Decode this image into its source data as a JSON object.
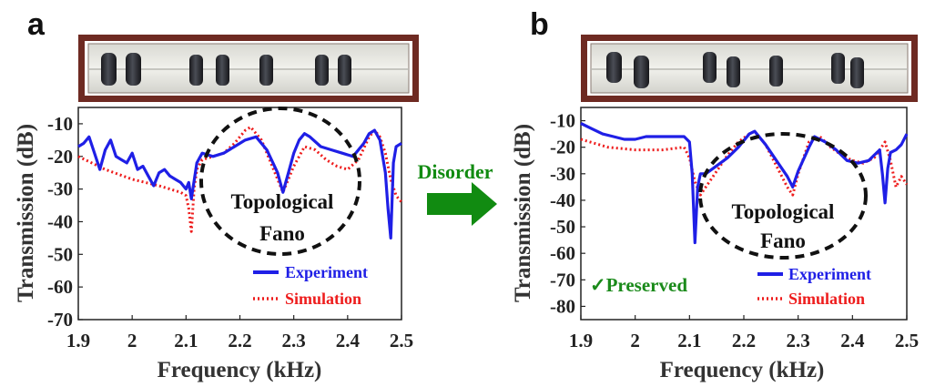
{
  "colors": {
    "experiment": "#1f1fe6",
    "simulation": "#ee1c1c",
    "arrow": "#118b11",
    "frame": "#6e2a22",
    "preserved": "#1a8a1a"
  },
  "arrow_label": "Disorder",
  "chart_data": [
    {
      "type": "line",
      "panel": "a",
      "xlabel": "Frequency (kHz)",
      "ylabel": "Transmission (dB)",
      "xlim": [
        1.9,
        2.5
      ],
      "ylim": [
        -70,
        -5
      ],
      "xticks": [
        "1.9",
        "2",
        "2.1",
        "2.2",
        "2.3",
        "2.4",
        "2.5"
      ],
      "yticks": [
        "-10",
        "-20",
        "-30",
        "-40",
        "-50",
        "-60",
        "-70"
      ],
      "annotation": [
        "Topological",
        "Fano"
      ],
      "legend": {
        "position": "bottom-right",
        "entries": [
          "Experiment",
          "Simulation"
        ]
      },
      "series": [
        {
          "name": "Experiment",
          "style": "solid",
          "x": [
            1.9,
            1.91,
            1.92,
            1.93,
            1.94,
            1.95,
            1.96,
            1.97,
            1.98,
            1.99,
            2.0,
            2.01,
            2.02,
            2.03,
            2.04,
            2.05,
            2.06,
            2.07,
            2.08,
            2.09,
            2.1,
            2.105,
            2.11,
            2.12,
            2.13,
            2.15,
            2.17,
            2.19,
            2.21,
            2.23,
            2.25,
            2.27,
            2.28,
            2.29,
            2.3,
            2.31,
            2.32,
            2.33,
            2.35,
            2.37,
            2.39,
            2.41,
            2.43,
            2.44,
            2.45,
            2.46,
            2.47,
            2.475,
            2.48,
            2.485,
            2.49,
            2.5
          ],
          "y": [
            -17,
            -16,
            -14,
            -19,
            -24,
            -18,
            -15,
            -20,
            -21,
            -22,
            -19,
            -24,
            -23,
            -26,
            -29,
            -25,
            -24,
            -26,
            -27,
            -28,
            -30,
            -28,
            -33,
            -22,
            -19,
            -20,
            -19,
            -17,
            -15,
            -14,
            -18,
            -25,
            -31,
            -25,
            -19,
            -15,
            -13,
            -14,
            -17,
            -18,
            -19,
            -20,
            -16,
            -13,
            -12,
            -15,
            -25,
            -36,
            -45,
            -22,
            -17,
            -16
          ]
        },
        {
          "name": "Simulation",
          "style": "dotted",
          "x": [
            1.9,
            1.95,
            2.0,
            2.05,
            2.09,
            2.1,
            2.105,
            2.11,
            2.115,
            2.12,
            2.13,
            2.15,
            2.17,
            2.19,
            2.21,
            2.22,
            2.24,
            2.26,
            2.28,
            2.3,
            2.32,
            2.34,
            2.36,
            2.38,
            2.4,
            2.42,
            2.44,
            2.45,
            2.46,
            2.47,
            2.48,
            2.49,
            2.5
          ],
          "y": [
            -20,
            -24,
            -27,
            -29,
            -31,
            -32,
            -36,
            -43,
            -30,
            -24,
            -21,
            -20,
            -19,
            -16,
            -12,
            -11,
            -15,
            -23,
            -31,
            -23,
            -17,
            -18,
            -21,
            -23,
            -24,
            -21,
            -14,
            -12,
            -14,
            -19,
            -27,
            -32,
            -34
          ]
        }
      ]
    },
    {
      "type": "line",
      "panel": "b",
      "xlabel": "Frequency (kHz)",
      "ylabel": "Transmission (dB)",
      "xlim": [
        1.9,
        2.5
      ],
      "ylim": [
        -85,
        -5
      ],
      "xticks": [
        "1.9",
        "2",
        "2.1",
        "2.2",
        "2.3",
        "2.4",
        "2.5"
      ],
      "yticks": [
        "-10",
        "-20",
        "-30",
        "-40",
        "-50",
        "-60",
        "-70",
        "-80"
      ],
      "annotation": [
        "Topological",
        "Fano"
      ],
      "status_text": "✓Preserved",
      "legend": {
        "position": "bottom-right",
        "entries": [
          "Experiment",
          "Simulation"
        ]
      },
      "series": [
        {
          "name": "Experiment",
          "style": "solid",
          "x": [
            1.9,
            1.92,
            1.94,
            1.96,
            1.98,
            2.0,
            2.02,
            2.04,
            2.06,
            2.08,
            2.09,
            2.1,
            2.105,
            2.11,
            2.115,
            2.12,
            2.13,
            2.15,
            2.17,
            2.19,
            2.21,
            2.22,
            2.24,
            2.26,
            2.28,
            2.29,
            2.3,
            2.32,
            2.33,
            2.35,
            2.37,
            2.39,
            2.41,
            2.43,
            2.44,
            2.45,
            2.455,
            2.46,
            2.465,
            2.47,
            2.48,
            2.49,
            2.5
          ],
          "y": [
            -11,
            -13,
            -15,
            -16,
            -17,
            -17,
            -16,
            -16,
            -16,
            -16,
            -16,
            -18,
            -30,
            -56,
            -35,
            -30,
            -30,
            -27,
            -24,
            -20,
            -15,
            -14,
            -19,
            -25,
            -31,
            -35,
            -29,
            -20,
            -16,
            -18,
            -21,
            -25,
            -26,
            -25,
            -23,
            -21,
            -30,
            -41,
            -28,
            -22,
            -21,
            -19,
            -15
          ]
        },
        {
          "name": "Simulation",
          "style": "dotted",
          "x": [
            1.9,
            1.95,
            2.0,
            2.05,
            2.09,
            2.1,
            2.11,
            2.12,
            2.13,
            2.15,
            2.17,
            2.19,
            2.21,
            2.22,
            2.24,
            2.26,
            2.28,
            2.29,
            2.3,
            2.32,
            2.34,
            2.36,
            2.38,
            2.4,
            2.42,
            2.44,
            2.45,
            2.46,
            2.47,
            2.48,
            2.49,
            2.5
          ],
          "y": [
            -17,
            -20,
            -21,
            -21,
            -20,
            -24,
            -33,
            -38,
            -35,
            -29,
            -23,
            -18,
            -15,
            -14,
            -19,
            -27,
            -35,
            -38,
            -30,
            -18,
            -16,
            -20,
            -23,
            -25,
            -26,
            -24,
            -21,
            -18,
            -25,
            -35,
            -31,
            -34
          ]
        }
      ]
    }
  ]
}
